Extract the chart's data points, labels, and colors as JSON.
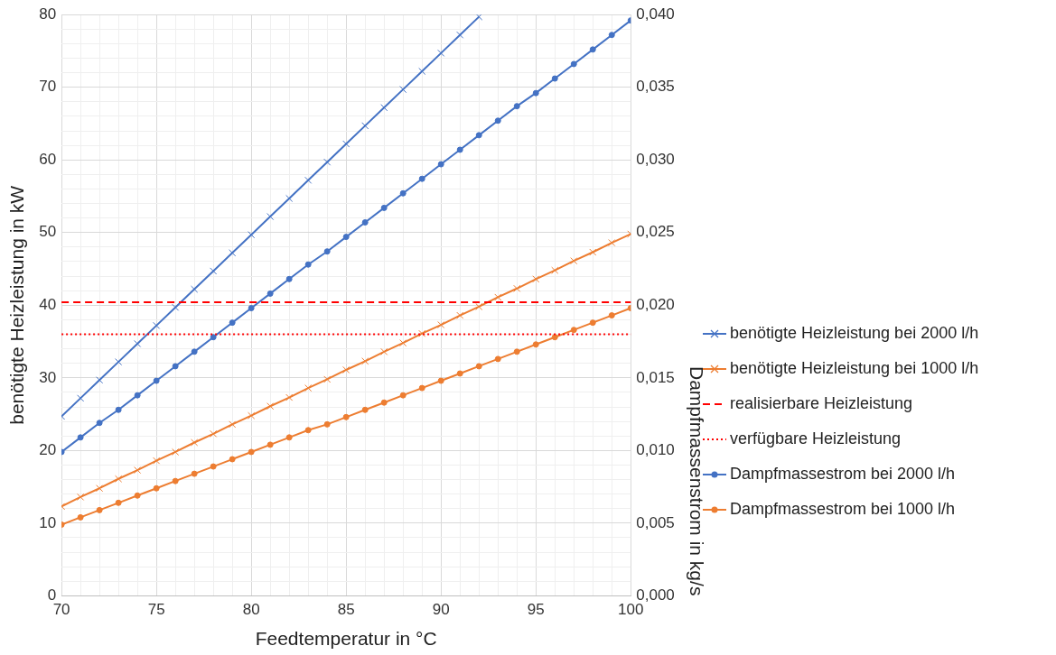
{
  "chart_data": {
    "type": "line",
    "xlabel": "Feedtemperatur in °C",
    "ylabel": "benötigte Heizleistung in kW",
    "y2label": "Dampfmassenstrom in kg/s",
    "xlim": [
      70,
      100
    ],
    "xticks": [
      70,
      {
        "value": 71,
        "label": null
      },
      {
        "value": 72,
        "label": null
      },
      {
        "value": 73,
        "label": null
      },
      {
        "value": 74,
        "label": null
      },
      75,
      {
        "value": 76,
        "label": null
      },
      {
        "value": 77,
        "label": null
      },
      {
        "value": 78,
        "label": null
      },
      {
        "value": 79,
        "label": null
      },
      80,
      {
        "value": 81,
        "label": null
      },
      {
        "value": 82,
        "label": null
      },
      {
        "value": 83,
        "label": null
      },
      {
        "value": 84,
        "label": null
      },
      85,
      {
        "value": 86,
        "label": null
      },
      {
        "value": 87,
        "label": null
      },
      {
        "value": 88,
        "label": null
      },
      {
        "value": 89,
        "label": null
      },
      90,
      {
        "value": 91,
        "label": null
      },
      {
        "value": 92,
        "label": null
      },
      {
        "value": 93,
        "label": null
      },
      {
        "value": 94,
        "label": null
      },
      95,
      {
        "value": 96,
        "label": null
      },
      {
        "value": 97,
        "label": null
      },
      {
        "value": 98,
        "label": null
      },
      {
        "value": 99,
        "label": null
      },
      100
    ],
    "ylim": [
      0,
      80
    ],
    "yticks": [
      0,
      {
        "value": 2,
        "label": null
      },
      {
        "value": 4,
        "label": null
      },
      {
        "value": 6,
        "label": null
      },
      {
        "value": 8,
        "label": null
      },
      10,
      {
        "value": 12,
        "label": null
      },
      {
        "value": 14,
        "label": null
      },
      {
        "value": 16,
        "label": null
      },
      {
        "value": 18,
        "label": null
      },
      20,
      {
        "value": 22,
        "label": null
      },
      {
        "value": 24,
        "label": null
      },
      {
        "value": 26,
        "label": null
      },
      {
        "value": 28,
        "label": null
      },
      30,
      {
        "value": 32,
        "label": null
      },
      {
        "value": 34,
        "label": null
      },
      {
        "value": 36,
        "label": null
      },
      {
        "value": 38,
        "label": null
      },
      40,
      {
        "value": 42,
        "label": null
      },
      {
        "value": 44,
        "label": null
      },
      {
        "value": 46,
        "label": null
      },
      {
        "value": 48,
        "label": null
      },
      50,
      {
        "value": 52,
        "label": null
      },
      {
        "value": 54,
        "label": null
      },
      {
        "value": 56,
        "label": null
      },
      {
        "value": 58,
        "label": null
      },
      60,
      {
        "value": 62,
        "label": null
      },
      {
        "value": 64,
        "label": null
      },
      {
        "value": 66,
        "label": null
      },
      {
        "value": 68,
        "label": null
      },
      70,
      {
        "value": 72,
        "label": null
      },
      {
        "value": 74,
        "label": null
      },
      {
        "value": 76,
        "label": null
      },
      {
        "value": 78,
        "label": null
      },
      80
    ],
    "y2lim": [
      0,
      0.04
    ],
    "y2ticks": [
      {
        "value": 0,
        "label": "0,000"
      },
      {
        "value": 0.005,
        "label": "0,005"
      },
      {
        "value": 0.01,
        "label": "0,010"
      },
      {
        "value": 0.015,
        "label": "0,015"
      },
      {
        "value": 0.02,
        "label": "0,020"
      },
      {
        "value": 0.025,
        "label": "0,025"
      },
      {
        "value": 0.03,
        "label": "0,030"
      },
      {
        "value": 0.035,
        "label": "0,035"
      },
      {
        "value": 0.04,
        "label": "0,040"
      }
    ],
    "grid": true,
    "legend": "right",
    "line_style": "solid",
    "x": [
      70,
      71,
      72,
      73,
      74,
      75,
      76,
      77,
      78,
      79,
      80,
      81,
      82,
      83,
      84,
      85,
      86,
      87,
      88,
      89,
      90,
      91,
      92,
      93,
      94,
      95,
      96,
      97,
      98,
      99,
      100
    ],
    "series": [
      {
        "name": "benötigte Heizleistung bei 2000 l/h",
        "color": "#4472c4",
        "marker": "cross",
        "values": [
          24.7,
          27.2,
          29.7,
          32.2,
          34.7,
          37.2,
          39.7,
          42.2,
          44.7,
          47.2,
          49.7,
          52.2,
          54.7,
          57.2,
          59.7,
          62.2,
          64.7,
          67.2,
          69.7,
          72.2,
          74.7,
          77.2,
          79.7,
          null,
          null,
          null,
          null,
          null,
          null,
          null,
          null
        ]
      },
      {
        "name": "benötigte Heizleistung bei 1000 l/h",
        "color": "#ed7d31",
        "marker": "cross",
        "values": [
          12.3,
          13.6,
          14.8,
          16.1,
          17.3,
          18.6,
          19.8,
          21.1,
          22.3,
          23.6,
          24.8,
          26.1,
          27.3,
          28.6,
          29.8,
          31.1,
          32.3,
          33.6,
          34.8,
          36.1,
          37.3,
          38.6,
          39.8,
          41.1,
          42.3,
          43.6,
          44.8,
          46.1,
          47.3,
          48.6,
          49.8
        ]
      },
      {
        "name": "Dampfmassestrom bei 2000 l/h",
        "color": "#4472c4",
        "marker": "circle",
        "axis": "y2",
        "values": [
          0.0099,
          0.0109,
          0.0119,
          0.0128,
          0.0138,
          0.0148,
          0.0158,
          0.0168,
          0.0178,
          0.0188,
          0.0198,
          0.0208,
          0.0218,
          0.0228,
          0.0237,
          0.0247,
          0.0257,
          0.0267,
          0.0277,
          0.0287,
          0.0297,
          0.0307,
          0.0317,
          0.0327,
          0.0337,
          0.0346,
          0.0356,
          0.0366,
          0.0376,
          0.0386,
          0.0396
        ]
      },
      {
        "name": "Dampfmassestrom bei 1000 l/h",
        "color": "#ed7d31",
        "marker": "circle",
        "axis": "y2",
        "values": [
          0.0049,
          0.0054,
          0.0059,
          0.0064,
          0.0069,
          0.0074,
          0.0079,
          0.0084,
          0.0089,
          0.0094,
          0.0099,
          0.0104,
          0.0109,
          0.0114,
          0.0118,
          0.0123,
          0.0128,
          0.0133,
          0.0138,
          0.0143,
          0.0148,
          0.0153,
          0.0158,
          0.0163,
          0.0168,
          0.0173,
          0.0178,
          0.0183,
          0.0188,
          0.0193,
          0.0198
        ]
      }
    ],
    "ref_lines": [
      {
        "axis": "y",
        "value": 40.4,
        "label": "realisierbare Heizleistung",
        "color": "#ff0000",
        "line_style": "dashed"
      },
      {
        "axis": "y",
        "value": 36.0,
        "label": "verfügbare Heizleistung",
        "color": "#ff0000",
        "line_style": "dotted"
      }
    ]
  }
}
